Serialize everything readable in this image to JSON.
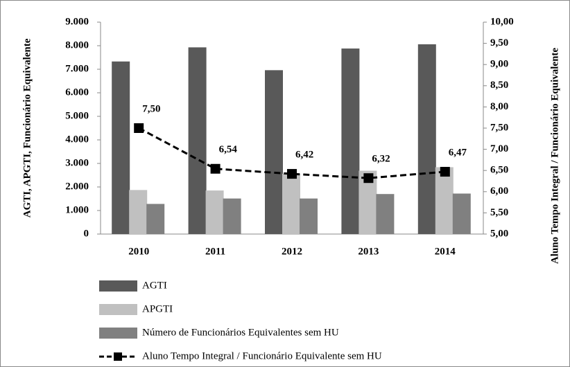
{
  "chart_data": {
    "type": "bar",
    "ylabel": "AGTI, APGTI, Funcionário Equivalente",
    "y2label": "Aluno Tempo Integral / Funcionário Equivalente",
    "categories": [
      "2010",
      "2011",
      "2012",
      "2013",
      "2014"
    ],
    "series": [
      {
        "name": "AGTI",
        "color": "#595959",
        "values": [
          7330,
          7930,
          6960,
          7880,
          8060
        ]
      },
      {
        "name": "APGTI",
        "color": "#c0c0c0",
        "values": [
          1870,
          1850,
          2560,
          2690,
          2840
        ]
      },
      {
        "name": "Número de Funcionários Equivalentes sem HU",
        "color": "#808080",
        "values": [
          1280,
          1510,
          1510,
          1700,
          1720
        ]
      },
      {
        "name": "Aluno Tempo Integral / Funcionário Equivalente sem HU",
        "type": "line",
        "axis": "y2",
        "color": "#000000",
        "values": [
          7.5,
          6.54,
          6.42,
          6.32,
          6.47
        ],
        "value_labels": [
          "7,50",
          "6,54",
          "6,42",
          "6,32",
          "6,47"
        ]
      }
    ],
    "ylim": [
      0,
      9000
    ],
    "yticks": [
      0,
      {
        "value": 1000,
        "label": "1.000"
      },
      {
        "value": 2000,
        "label": "2.000"
      },
      {
        "value": 3000,
        "label": "3.000"
      },
      {
        "value": 4000,
        "label": "4.000"
      },
      {
        "value": 5000,
        "label": "5.000"
      },
      {
        "value": 6000,
        "label": "6.000"
      },
      {
        "value": 7000,
        "label": "7.000"
      },
      {
        "value": 8000,
        "label": "8.000"
      },
      {
        "value": 9000,
        "label": "9.000"
      }
    ],
    "y2lim": [
      5,
      10
    ],
    "y2ticks": [
      {
        "value": 5,
        "label": "5,00"
      },
      {
        "value": 5.5,
        "label": "5,50"
      },
      {
        "value": 6,
        "label": "6,00"
      },
      {
        "value": 6.5,
        "label": "6,50"
      },
      {
        "value": 7,
        "label": "7,00"
      },
      {
        "value": 7.5,
        "label": "7,50"
      },
      {
        "value": 8,
        "label": "8,00"
      },
      {
        "value": 8.5,
        "label": "8,50"
      },
      {
        "value": 9,
        "label": "9,00"
      },
      {
        "value": 9.5,
        "label": "9,50"
      },
      {
        "value": 10,
        "label": "10,00"
      }
    ],
    "grid": false,
    "legend": "bottom"
  }
}
